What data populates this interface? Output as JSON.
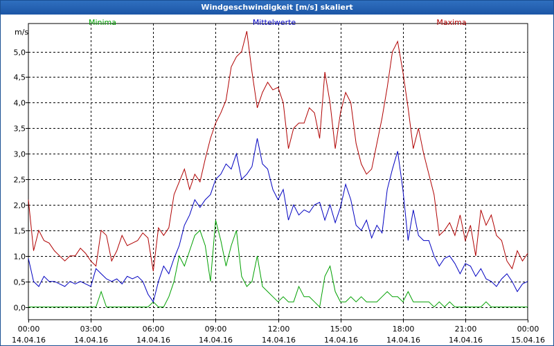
{
  "window": {
    "title": "Windgeschwindigkeit [m/s] skaliert"
  },
  "chart_data": {
    "type": "line",
    "title": "Windgeschwindigkeit [m/s] skaliert",
    "ylabel": "m/s",
    "ylim": [
      -0.25,
      5.55
    ],
    "yticks": [
      0,
      0.5,
      1,
      1.5,
      2,
      2.5,
      3,
      3.5,
      4,
      4.5,
      5
    ],
    "ytick_labels": [
      "0,0",
      "0,5",
      "1,0",
      "1,5",
      "2,0",
      "2,5",
      "3,0",
      "3,5",
      "4,0",
      "4,5",
      "5,0"
    ],
    "xlim": [
      0,
      24
    ],
    "xticks": [
      0,
      3,
      6,
      9,
      12,
      15,
      18,
      21,
      24
    ],
    "xtick_labels": [
      [
        "00:00",
        "14.04.16"
      ],
      [
        "03:00",
        "14.04.16"
      ],
      [
        "06:00",
        "14.04.16"
      ],
      [
        "09:00",
        "14.04.16"
      ],
      [
        "12:00",
        "14.04.16"
      ],
      [
        "15:00",
        "14.04.16"
      ],
      [
        "18:00",
        "14.04.16"
      ],
      [
        "21:00",
        "14.04.16"
      ],
      [
        "00:00",
        "15.04.16"
      ]
    ],
    "grid": true,
    "x": [
      0,
      0.25,
      0.5,
      0.75,
      1,
      1.25,
      1.5,
      1.75,
      2,
      2.25,
      2.5,
      2.75,
      3,
      3.25,
      3.5,
      3.75,
      4,
      4.25,
      4.5,
      4.75,
      5,
      5.25,
      5.5,
      5.75,
      6,
      6.25,
      6.5,
      6.75,
      7,
      7.25,
      7.5,
      7.75,
      8,
      8.25,
      8.5,
      8.75,
      9,
      9.25,
      9.5,
      9.75,
      10,
      10.25,
      10.5,
      10.75,
      11,
      11.25,
      11.5,
      11.75,
      12,
      12.25,
      12.5,
      12.75,
      13,
      13.25,
      13.5,
      13.75,
      14,
      14.25,
      14.5,
      14.75,
      15,
      15.25,
      15.5,
      15.75,
      16,
      16.25,
      16.5,
      16.75,
      17,
      17.25,
      17.5,
      17.75,
      18,
      18.25,
      18.5,
      18.75,
      19,
      19.25,
      19.5,
      19.75,
      20,
      20.25,
      20.5,
      20.75,
      21,
      21.25,
      21.5,
      21.75,
      22,
      22.25,
      22.5,
      22.75,
      23,
      23.25,
      23.5,
      23.75,
      24
    ],
    "series": [
      {
        "name": "Minima",
        "color": "#00a000",
        "values": [
          0,
          0,
          0,
          0,
          0,
          0,
          0,
          0,
          0,
          0,
          0,
          0,
          0,
          0,
          0.3,
          0,
          0,
          0,
          0,
          0,
          0,
          0,
          0,
          0,
          0.1,
          0,
          0,
          0.2,
          0.5,
          1.0,
          0.8,
          1.1,
          1.4,
          1.5,
          1.2,
          0.5,
          1.7,
          1.3,
          0.8,
          1.2,
          1.5,
          0.6,
          0.4,
          0.5,
          1.0,
          0.4,
          0.3,
          0.2,
          0.1,
          0.2,
          0.1,
          0.1,
          0.4,
          0.2,
          0.2,
          0.1,
          0,
          0.6,
          0.8,
          0.3,
          0.1,
          0.1,
          0.2,
          0.1,
          0.2,
          0.1,
          0.1,
          0.1,
          0.2,
          0.3,
          0.2,
          0.2,
          0.1,
          0.3,
          0.1,
          0.1,
          0.1,
          0.1,
          0,
          0.1,
          0,
          0.1,
          0,
          0,
          0,
          0,
          0,
          0,
          0.1,
          0,
          0,
          0,
          0,
          0,
          0,
          0,
          0
        ]
      },
      {
        "name": "Mittelwerte",
        "color": "#0000c0",
        "values": [
          0.95,
          0.5,
          0.4,
          0.6,
          0.5,
          0.5,
          0.45,
          0.4,
          0.5,
          0.45,
          0.5,
          0.45,
          0.4,
          0.75,
          0.65,
          0.55,
          0.5,
          0.55,
          0.45,
          0.6,
          0.55,
          0.6,
          0.5,
          0.25,
          0.1,
          0.5,
          0.8,
          0.65,
          0.95,
          1.2,
          1.6,
          1.8,
          2.1,
          1.95,
          2.1,
          2.2,
          2.5,
          2.6,
          2.8,
          2.7,
          3.0,
          2.5,
          2.6,
          2.75,
          3.3,
          2.8,
          2.7,
          2.3,
          2.1,
          2.3,
          1.7,
          2.0,
          1.8,
          1.9,
          1.85,
          2.0,
          2.05,
          1.7,
          2.0,
          1.65,
          1.95,
          2.4,
          2.1,
          1.6,
          1.5,
          1.7,
          1.35,
          1.6,
          1.45,
          2.3,
          2.7,
          3.05,
          2.3,
          1.3,
          1.9,
          1.4,
          1.3,
          1.3,
          1.0,
          0.8,
          0.95,
          1.0,
          0.85,
          0.65,
          0.85,
          0.8,
          0.6,
          0.75,
          0.55,
          0.5,
          0.4,
          0.55,
          0.65,
          0.5,
          0.3,
          0.45,
          0.5
        ]
      },
      {
        "name": "Maxima",
        "color": "#b00000",
        "values": [
          2.1,
          1.1,
          1.5,
          1.3,
          1.25,
          1.1,
          1.0,
          0.9,
          1.0,
          1.0,
          1.15,
          1.05,
          0.9,
          0.8,
          1.5,
          1.4,
          0.9,
          1.1,
          1.4,
          1.2,
          1.25,
          1.3,
          1.45,
          1.35,
          0.7,
          1.55,
          1.4,
          1.55,
          2.2,
          2.45,
          2.7,
          2.3,
          2.6,
          2.45,
          2.9,
          3.3,
          3.6,
          3.8,
          4.05,
          4.7,
          4.9,
          5.0,
          5.4,
          4.6,
          3.9,
          4.2,
          4.4,
          4.25,
          4.3,
          4.0,
          3.1,
          3.5,
          3.6,
          3.6,
          3.9,
          3.8,
          3.3,
          4.6,
          4.0,
          3.1,
          3.8,
          4.2,
          4.0,
          3.2,
          2.8,
          2.6,
          2.7,
          3.2,
          3.7,
          4.3,
          5.0,
          5.2,
          4.6,
          3.9,
          3.1,
          3.5,
          3.0,
          2.6,
          2.2,
          1.4,
          1.5,
          1.65,
          1.4,
          1.8,
          1.3,
          1.6,
          1.0,
          1.9,
          1.6,
          1.8,
          1.4,
          1.3,
          0.9,
          0.75,
          1.1,
          0.9,
          1.05
        ]
      }
    ]
  }
}
